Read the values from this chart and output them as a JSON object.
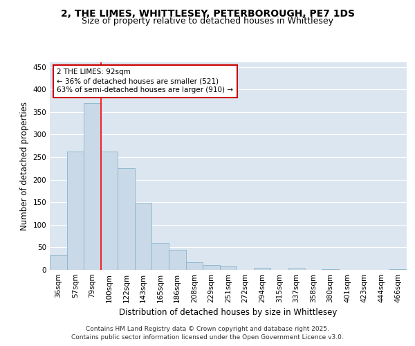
{
  "title_line1": "2, THE LIMES, WHITTLESEY, PETERBOROUGH, PE7 1DS",
  "title_line2": "Size of property relative to detached houses in Whittlesey",
  "xlabel": "Distribution of detached houses by size in Whittlesey",
  "ylabel": "Number of detached properties",
  "categories": [
    "36sqm",
    "57sqm",
    "79sqm",
    "100sqm",
    "122sqm",
    "143sqm",
    "165sqm",
    "186sqm",
    "208sqm",
    "229sqm",
    "251sqm",
    "272sqm",
    "294sqm",
    "315sqm",
    "337sqm",
    "358sqm",
    "380sqm",
    "401sqm",
    "423sqm",
    "444sqm",
    "466sqm"
  ],
  "values": [
    32,
    262,
    370,
    262,
    226,
    148,
    60,
    45,
    17,
    10,
    8,
    0,
    5,
    0,
    3,
    0,
    1,
    0,
    0,
    0,
    2
  ],
  "bar_color": "#c9d9e8",
  "bar_edge_color": "#8ab4cc",
  "red_line_x": 2.5,
  "annotation_text": "2 THE LIMES: 92sqm\n← 36% of detached houses are smaller (521)\n63% of semi-detached houses are larger (910) →",
  "annotation_box_color": "#ffffff",
  "annotation_box_edge": "#cc0000",
  "ylim": [
    0,
    460
  ],
  "yticks": [
    0,
    50,
    100,
    150,
    200,
    250,
    300,
    350,
    400,
    450
  ],
  "background_color": "#dce6f0",
  "footer_line1": "Contains HM Land Registry data © Crown copyright and database right 2025.",
  "footer_line2": "Contains public sector information licensed under the Open Government Licence v3.0.",
  "title_fontsize": 10,
  "subtitle_fontsize": 9,
  "axis_label_fontsize": 8.5,
  "tick_fontsize": 7.5,
  "annotation_fontsize": 7.5,
  "footer_fontsize": 6.5,
  "grid_color": "#ffffff"
}
